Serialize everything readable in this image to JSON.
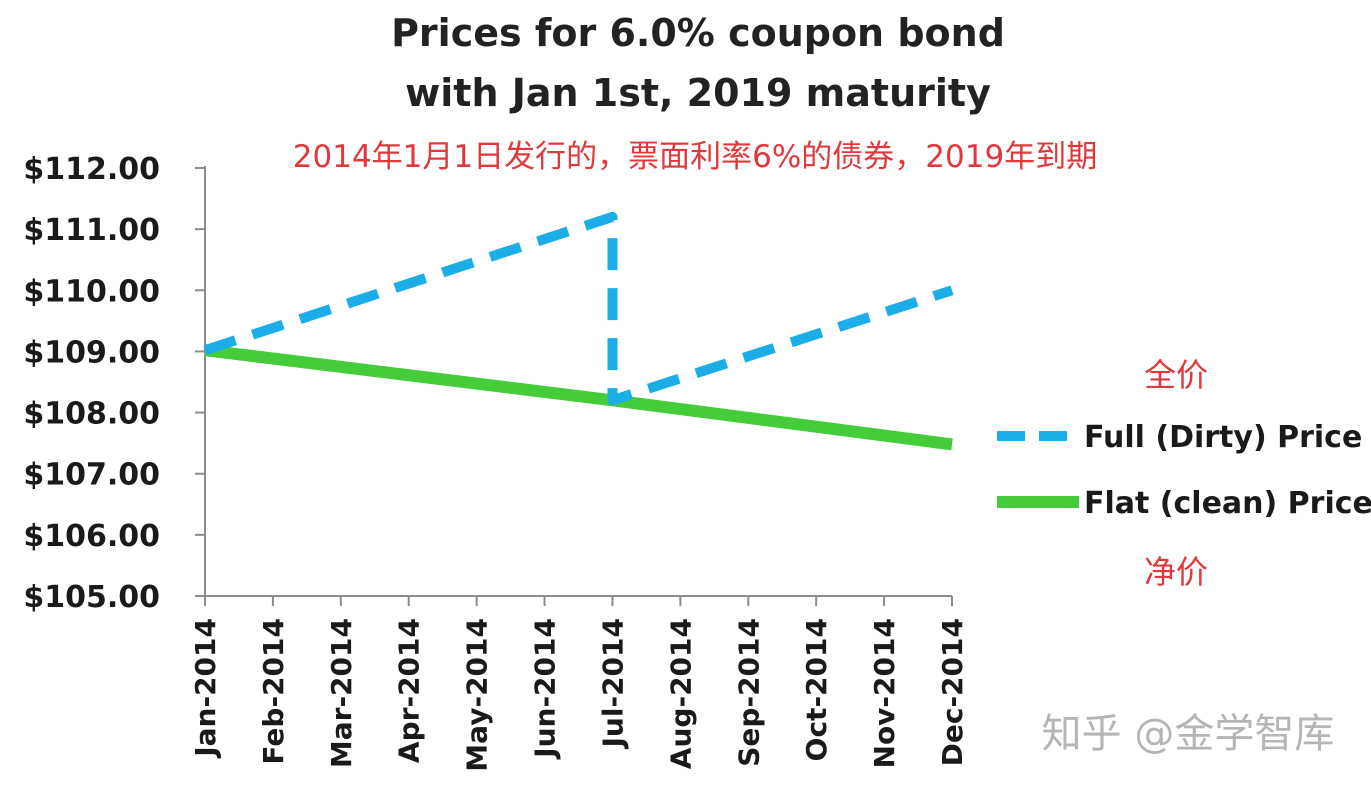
{
  "chart_data": {
    "type": "line",
    "title_lines": [
      "Prices for 6.0% coupon  bond",
      "with Jan 1st, 2019 maturity"
    ],
    "subtitle": "2014年1月1日发行的，票面利率6%的债券，2019年到期",
    "categories": [
      "Jan-2014",
      "Feb-2014",
      "Mar-2014",
      "Apr-2014",
      "May-2014",
      "Jun-2014",
      "Jul-2014",
      "Aug-2014",
      "Sep-2014",
      "Oct-2014",
      "Nov-2014",
      "Dec-2014"
    ],
    "ylim": [
      105,
      112
    ],
    "y_ticks": [
      "$105.00",
      "$106.00",
      "$107.00",
      "$108.00",
      "$109.00",
      "$110.00",
      "$111.00",
      "$112.00"
    ],
    "series": [
      {
        "name": "Full (Dirty) Price",
        "color": "#1aade8",
        "dash": true,
        "points": [
          [
            0,
            109.02
          ],
          [
            6,
            111.2
          ],
          [
            6,
            108.2
          ],
          [
            11,
            110.0
          ]
        ]
      },
      {
        "name": "Flat (clean) Price",
        "color": "#44cc3b",
        "dash": false,
        "points": [
          [
            0,
            109.02
          ],
          [
            6,
            108.2
          ],
          [
            11,
            107.48
          ]
        ]
      }
    ],
    "legend_position": "right",
    "annotations": {
      "full_price": "全价",
      "clean_price": "净价"
    },
    "watermark": "知乎 @金学智库"
  }
}
